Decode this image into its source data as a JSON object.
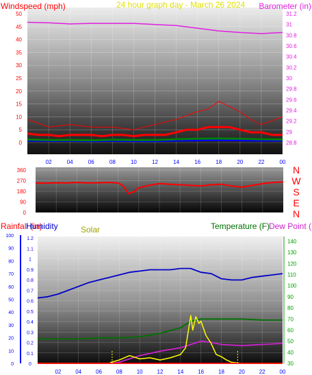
{
  "colors": {
    "wind": "#ff0000",
    "gust": "#ff0000",
    "wind_low": "#0000ff",
    "wind_avg": "#008000",
    "barometer": "#e020e0",
    "title": "#e0e000",
    "humidity": "#0000c8",
    "solar": "#ffff00",
    "solar_label": "#a0a000",
    "temperature": "#007000",
    "dew_point": "#cc22cc",
    "rainfall": "#ff0000",
    "tick_label_blue": "#0000ff",
    "axis_green": "#00a000"
  },
  "chart_data": [
    {
      "type": "line",
      "panel": "wind-barometer",
      "title": "24 hour graph day - March 26 2024",
      "left_axis_label": "Windspeed (mph)",
      "right_axis_label": "Barometer (in)",
      "y_left_ticks": [
        "50",
        "45",
        "40",
        "35",
        "30",
        "25",
        "20",
        "15",
        "10",
        "5",
        "0"
      ],
      "y_left_lim": [
        0,
        50
      ],
      "y_right_ticks": [
        "31.2",
        "31",
        "30.8",
        "30.6",
        "30.4",
        "30.2",
        "30",
        "29.8",
        "29.6",
        "29.4",
        "29.2",
        "29",
        "28.8"
      ],
      "y_right_lim": [
        28.8,
        31.2
      ],
      "x_ticks": [
        "02",
        "04",
        "06",
        "08",
        "10",
        "12",
        "14",
        "16",
        "18",
        "20",
        "22",
        "00"
      ],
      "x_lim": [
        0,
        24
      ],
      "series": [
        {
          "key": "barometer",
          "axis": "right",
          "x": [
            0,
            2,
            4,
            6,
            8,
            10,
            12,
            14,
            16,
            18,
            20,
            22,
            24
          ],
          "y": [
            31.04,
            31.03,
            31.01,
            31.02,
            31.02,
            31.02,
            31.0,
            30.98,
            30.93,
            30.88,
            30.85,
            30.83,
            30.85
          ]
        },
        {
          "key": "wind",
          "axis": "left",
          "x": [
            0,
            1,
            2,
            3,
            4,
            5,
            6,
            7,
            8,
            9,
            10,
            11,
            12,
            13,
            14,
            15,
            16,
            17,
            18,
            19,
            20,
            21,
            22,
            23,
            24
          ],
          "y": [
            3.5,
            3,
            3,
            2.5,
            3,
            3,
            3,
            2.5,
            3,
            3,
            2.5,
            3,
            3,
            3,
            4,
            5,
            5,
            6,
            6,
            6,
            5,
            4,
            4,
            3,
            3
          ]
        },
        {
          "key": "gust",
          "axis": "left",
          "x": [
            0,
            2,
            4,
            6,
            8,
            10,
            12,
            14,
            16,
            17,
            18,
            19,
            20,
            21,
            22,
            24
          ],
          "y": [
            9,
            6,
            7,
            6,
            6,
            5,
            7,
            9,
            12,
            13,
            16,
            14,
            12,
            9,
            7,
            10
          ]
        },
        {
          "key": "wind_low",
          "axis": "left",
          "x": [
            0,
            2,
            4,
            6,
            8,
            10,
            12,
            14,
            16,
            18,
            20,
            22,
            24
          ],
          "y": [
            0.8,
            0.7,
            0.7,
            0.6,
            0.7,
            0.6,
            0.6,
            0.8,
            0.9,
            1.0,
            0.9,
            0.8,
            0.8
          ]
        },
        {
          "key": "wind_avg",
          "axis": "left",
          "x": [
            0,
            2,
            4,
            6,
            8,
            10,
            12,
            14,
            16,
            18,
            20,
            22,
            24
          ],
          "y": [
            1.2,
            1.0,
            1.0,
            0.9,
            1.1,
            1.0,
            1.0,
            1.3,
            1.5,
            1.6,
            1.5,
            1.3,
            1.2
          ]
        }
      ]
    },
    {
      "type": "line",
      "panel": "wind-direction",
      "y_ticks": [
        "360",
        "270",
        "180",
        "90",
        "0"
      ],
      "y_lim": [
        0,
        360
      ],
      "compass_labels": [
        "N",
        "W",
        "S",
        "E",
        "N"
      ],
      "x_lim": [
        0,
        24
      ],
      "series": [
        {
          "key": "wind",
          "x": [
            0,
            1,
            2,
            3,
            4,
            5,
            6,
            7,
            8,
            8.5,
            9,
            9.5,
            10,
            11,
            12,
            13,
            14,
            15,
            16,
            17,
            18,
            19,
            20,
            21,
            22,
            23,
            24
          ],
          "y": [
            250,
            248,
            252,
            250,
            255,
            250,
            252,
            255,
            250,
            225,
            160,
            175,
            210,
            230,
            245,
            240,
            235,
            230,
            225,
            235,
            240,
            225,
            215,
            230,
            245,
            255,
            260
          ]
        }
      ]
    },
    {
      "type": "line",
      "panel": "rain-humidity-solar-temperature",
      "rainfall_label": "Rainfall (in)",
      "humidity_label": "Humidity",
      "solar_label": "Solar",
      "temperature_label": "Temperature (F)",
      "dew_point_label": "Dew Point (",
      "y_rain_ticks": [
        "1.2",
        "1.1",
        "1",
        "0.9",
        "0.8",
        "0.7",
        "0.6",
        "0.5",
        "0.4",
        "0.3",
        "0.2",
        "0.1",
        "0"
      ],
      "y_rain_lim": [
        0,
        1.2
      ],
      "y_humidity_ticks": [
        "100",
        "90",
        "80",
        "70",
        "60",
        "50",
        "40",
        "30",
        "20",
        "10",
        "0"
      ],
      "y_humidity_lim": [
        0,
        100
      ],
      "y_temp_ticks": [
        "140",
        "130",
        "120",
        "110",
        "100",
        "90",
        "80",
        "70",
        "60",
        "50",
        "40",
        "30"
      ],
      "y_temp_lim": [
        30,
        140
      ],
      "x_ticks": [
        "02",
        "04",
        "06",
        "08",
        "10",
        "12",
        "14",
        "16",
        "18",
        "20",
        "22",
        "00"
      ],
      "x_lim": [
        0,
        24
      ],
      "series": [
        {
          "key": "humidity",
          "axis": "humidity",
          "x": [
            0,
            1,
            2,
            3,
            4,
            5,
            6,
            7,
            8,
            9,
            10,
            11,
            12,
            13,
            14,
            15,
            16,
            17,
            18,
            19,
            20,
            21,
            22,
            23,
            24
          ],
          "y": [
            51,
            52,
            54,
            57,
            60,
            63,
            65,
            67,
            69,
            71,
            72,
            73,
            73,
            73,
            74,
            74,
            71,
            70,
            66,
            65,
            65,
            67,
            68,
            69,
            70
          ]
        },
        {
          "key": "temperature",
          "axis": "temp",
          "x": [
            0,
            2,
            4,
            6,
            8,
            10,
            12,
            14,
            15,
            16,
            17,
            18,
            20,
            22,
            24
          ],
          "y": [
            52,
            52,
            52,
            53,
            53,
            54,
            57,
            62,
            68,
            70,
            70,
            70,
            70,
            69,
            69
          ]
        },
        {
          "key": "dew_point",
          "axis": "temp",
          "x": [
            0,
            2,
            4,
            6,
            7,
            8,
            9,
            10,
            12,
            14,
            15,
            16,
            17,
            18,
            20,
            22,
            24
          ],
          "y": [
            30,
            30,
            30,
            30,
            30,
            31,
            34,
            37,
            41,
            44,
            47,
            50,
            49,
            47,
            46,
            47,
            48
          ]
        },
        {
          "key": "solar",
          "axis": "temp",
          "x": [
            0,
            7,
            7.2,
            8,
            9,
            10,
            11,
            12,
            13,
            14,
            14.5,
            15,
            15.2,
            15.5,
            15.8,
            16,
            16.5,
            17,
            17.5,
            18,
            18.5,
            19,
            20,
            24
          ],
          "y": [
            30,
            30,
            31,
            33,
            37,
            34,
            35,
            33,
            35,
            38,
            44,
            73,
            60,
            72,
            66,
            68,
            55,
            48,
            38,
            36,
            33,
            31,
            30,
            30
          ]
        },
        {
          "key": "rainfall",
          "axis": "rain",
          "x": [
            0,
            24
          ],
          "y": [
            0,
            0
          ]
        }
      ]
    }
  ]
}
